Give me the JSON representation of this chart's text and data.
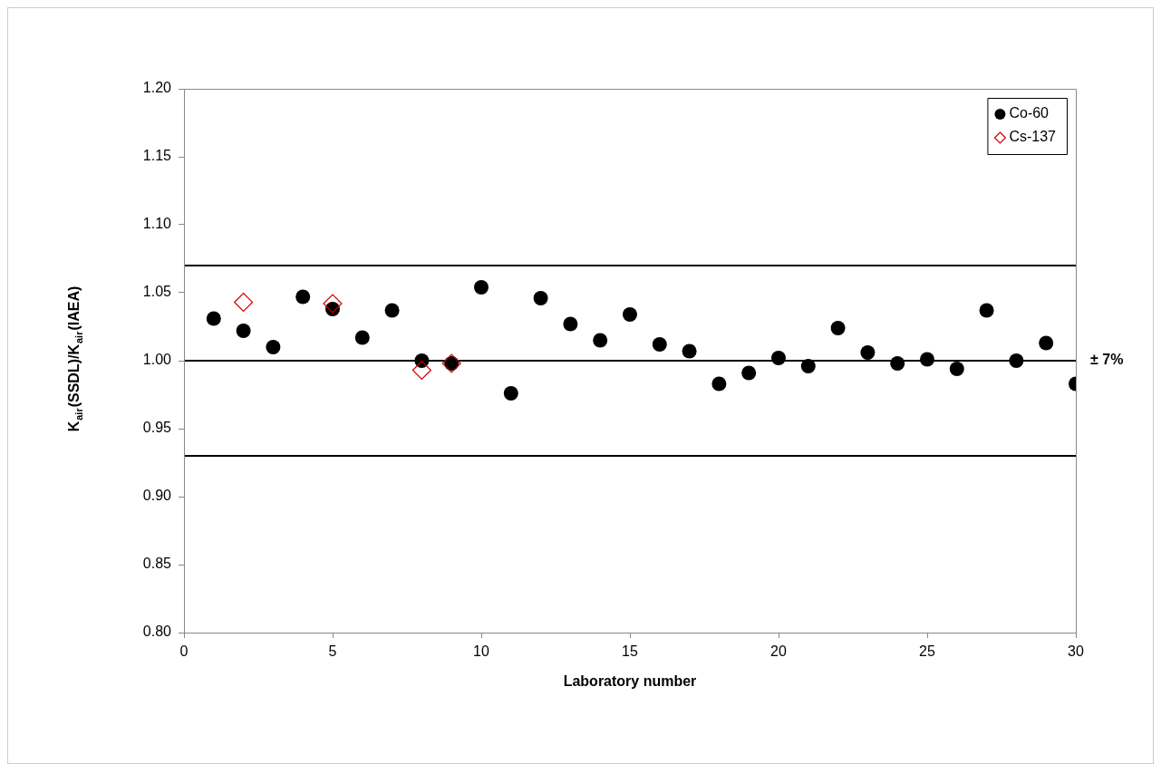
{
  "chart_data": {
    "type": "scatter",
    "xlabel": "Laboratory number",
    "ylabel": "K$_{air}$(SSDL)/K$_{air}$(IAEA)",
    "xlim": [
      0,
      30
    ],
    "xticks": [
      0,
      5,
      10,
      15,
      20,
      25,
      30
    ],
    "ylim": [
      0.8,
      1.2
    ],
    "yticks": [
      {
        "value": 0.8,
        "label": "0.80"
      },
      {
        "value": 0.85,
        "label": "0.85"
      },
      {
        "value": 0.9,
        "label": "0.90"
      },
      {
        "value": 0.95,
        "label": "0.95"
      },
      {
        "value": 1.0,
        "label": "1.00"
      },
      {
        "value": 1.05,
        "label": "1.05"
      },
      {
        "value": 1.1,
        "label": "1.10"
      },
      {
        "value": 1.15,
        "label": "1.15"
      },
      {
        "value": 1.2,
        "label": "1.20"
      }
    ],
    "grid": false,
    "legend": "top right",
    "annotations": [
      "± 7%"
    ],
    "ref_lines": [
      {
        "axis": "y",
        "value": 1.07,
        "label": null,
        "color": "#000000"
      },
      {
        "axis": "y",
        "value": 1.0,
        "label": null,
        "color": "#000000"
      },
      {
        "axis": "y",
        "value": 0.93,
        "label": null,
        "color": "#000000"
      }
    ],
    "series": [
      {
        "name": "Co-60",
        "color": "#000000",
        "marker": "circle",
        "x": [
          1,
          2,
          3,
          4,
          5,
          6,
          7,
          8,
          9,
          10,
          11,
          12,
          13,
          14,
          15,
          16,
          17,
          18,
          19,
          20,
          21,
          22,
          23,
          24,
          25,
          26,
          27,
          28,
          29,
          30
        ],
        "values": [
          1.031,
          1.022,
          1.01,
          1.047,
          1.038,
          1.017,
          1.037,
          1.0,
          0.998,
          1.054,
          0.976,
          1.046,
          1.027,
          1.015,
          1.034,
          1.012,
          1.007,
          0.983,
          0.991,
          1.002,
          0.996,
          1.024,
          1.006,
          0.998,
          1.001,
          0.994,
          1.037,
          1.0,
          1.013,
          0.983
        ]
      },
      {
        "name": "Cs-137",
        "color": "#cc0000",
        "marker": "diamond",
        "x": [
          2,
          5,
          8,
          9
        ],
        "values": [
          1.043,
          1.042,
          0.993,
          0.998
        ]
      }
    ]
  }
}
